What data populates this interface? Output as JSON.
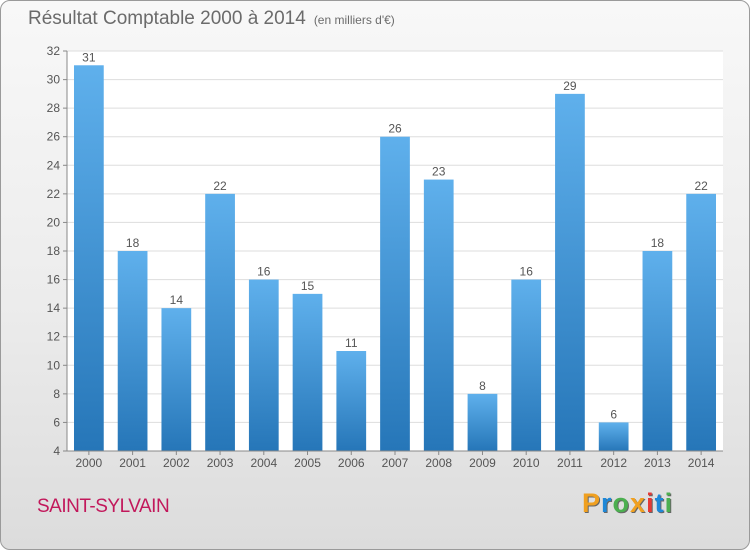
{
  "chart_data": {
    "type": "bar",
    "title": "Résultat Comptable 2000 à 2014",
    "subtitle": "(en milliers d'€)",
    "categories": [
      "2000",
      "2001",
      "2002",
      "2003",
      "2004",
      "2005",
      "2006",
      "2007",
      "2008",
      "2009",
      "2010",
      "2011",
      "2012",
      "2013",
      "2014"
    ],
    "values": [
      31,
      18,
      14,
      22,
      16,
      15,
      11,
      26,
      23,
      8,
      16,
      29,
      6,
      18,
      22
    ],
    "ylim": [
      4,
      32
    ],
    "yticks": [
      4,
      6,
      8,
      10,
      12,
      14,
      16,
      18,
      20,
      22,
      24,
      26,
      28,
      30,
      32
    ],
    "grid": true,
    "colors": {
      "bar_light": "#5fb0ec",
      "bar_dark": "#2676b8",
      "text": "#555555"
    }
  },
  "footer": {
    "city": "SAINT-SYLVAIN",
    "logo_letters": [
      "P",
      "r",
      "o",
      "x",
      "i",
      "t",
      "i"
    ],
    "logo_colors": [
      "#f0a020",
      "#1e88d8",
      "#4caf50",
      "#f0a020",
      "#e53935",
      "#1e88d8",
      "#4caf50"
    ]
  }
}
